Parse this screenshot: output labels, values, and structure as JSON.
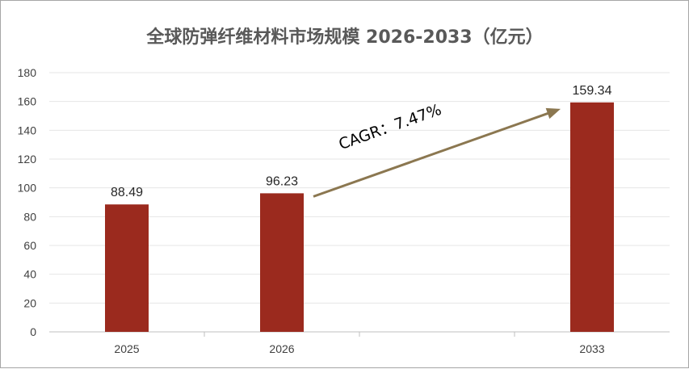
{
  "chart_data": {
    "type": "bar",
    "title": "全球防弹纤维材料市场规模 2026-2033（亿元）",
    "categories": [
      "2025",
      "2026",
      "",
      "2033"
    ],
    "values": [
      88.49,
      96.23,
      null,
      159.34
    ],
    "data_labels": [
      "88.49",
      "96.23",
      "",
      "159.34"
    ],
    "ylim": [
      0,
      180
    ],
    "yticks": [
      "0",
      "20",
      "40",
      "60",
      "80",
      "100",
      "120",
      "140",
      "160",
      "180"
    ],
    "grid": true,
    "bar_color": "#9b2a1e",
    "annotation": {
      "text": "CAGR：7.47%",
      "arrow_color": "#8b7750",
      "from_category": "2026",
      "to_category": "2033"
    }
  }
}
